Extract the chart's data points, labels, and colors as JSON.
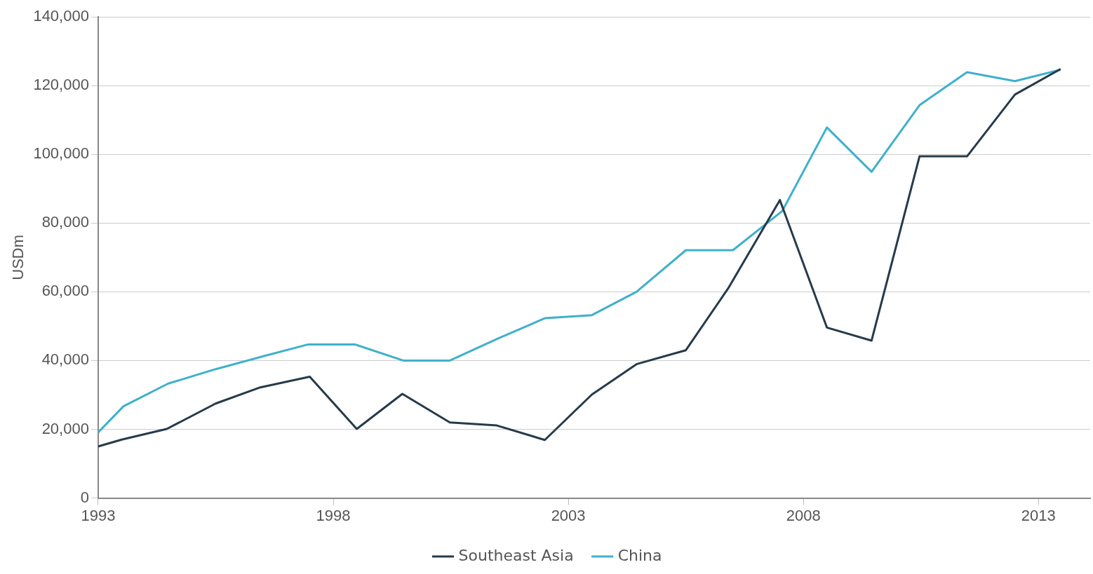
{
  "chart_data": {
    "type": "line",
    "ylabel": "USDm",
    "xlim": [
      1993,
      2014.1
    ],
    "xticks": [
      1993,
      1998,
      2003,
      2008,
      2013
    ],
    "ylim": [
      0,
      140000
    ],
    "yticks": [
      {
        "value": 0,
        "label": "0"
      },
      {
        "value": 20000,
        "label": "20,000"
      },
      {
        "value": 40000,
        "label": "40,000"
      },
      {
        "value": 60000,
        "label": "60,000"
      },
      {
        "value": 80000,
        "label": "80,000"
      },
      {
        "value": 100000,
        "label": "100,000"
      },
      {
        "value": 120000,
        "label": "120,000"
      },
      {
        "value": 140000,
        "label": "140,000"
      }
    ],
    "grid": "y",
    "legend": "bottom",
    "marker": "none",
    "line_style": "solid",
    "series": [
      {
        "name": "Southeast Asia",
        "color": "#263a4a",
        "x": [
          1993,
          1993.5,
          1994.46,
          1995.5,
          1996.45,
          1997.5,
          1998.5,
          1999.47,
          2000.48,
          2001.48,
          2002.5,
          2003.5,
          2004.46,
          2005.5,
          2006.4,
          2007.5,
          2008.5,
          2009.45,
          2010.47,
          2011.48,
          2012.5,
          2013.47
        ],
        "values": [
          15000,
          17000,
          20100,
          27500,
          32200,
          35300,
          20100,
          30300,
          22000,
          21100,
          16900,
          30100,
          39000,
          43000,
          61000,
          86700,
          49600,
          45800,
          99400,
          99400,
          117400,
          124800
        ]
      },
      {
        "name": "China",
        "color": "#3fb0cc",
        "x": [
          1993,
          1993.54,
          1994.49,
          1995.5,
          1996.5,
          1997.47,
          1998.46,
          1999.49,
          2000.48,
          2001.5,
          2002.5,
          2003.5,
          2004.45,
          2005.5,
          2006.5,
          2007.55,
          2008.5,
          2009.45,
          2010.47,
          2011.48,
          2012.5,
          2013.47
        ],
        "values": [
          19100,
          26700,
          33300,
          37500,
          41200,
          44700,
          44700,
          40000,
          40000,
          46400,
          52300,
          53200,
          60000,
          72100,
          72100,
          83500,
          107800,
          94900,
          114300,
          123900,
          121300,
          124600
        ]
      }
    ]
  }
}
